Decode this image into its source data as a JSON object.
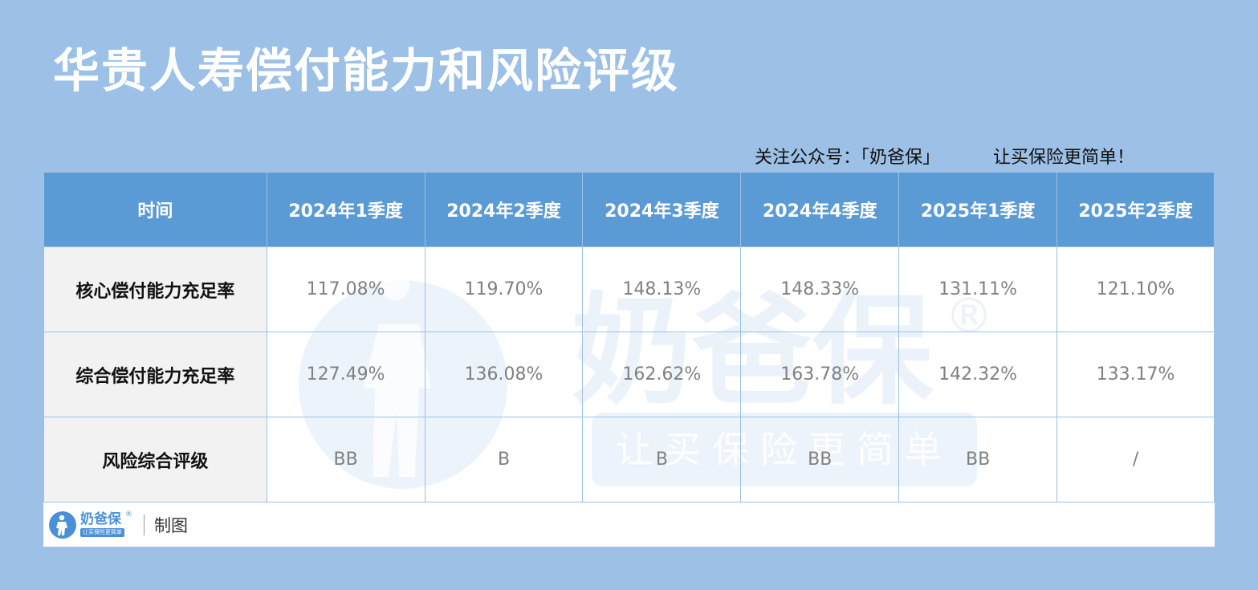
{
  "title": "华贵人寿偿付能力和风险评级",
  "slogan": {
    "follow": "关注公众号：「奶爸保」",
    "motto": "让买保险更简单！"
  },
  "table": {
    "header_label": "时间",
    "periods": [
      "2024年1季度",
      "2024年2季度",
      "2024年3季度",
      "2024年4季度",
      "2025年1季度",
      "2025年2季度"
    ],
    "rows": [
      {
        "label": "核心偿付能力充足率",
        "values": [
          "117.08%",
          "119.70%",
          "148.13%",
          "148.33%",
          "131.11%",
          "121.10%"
        ]
      },
      {
        "label": "综合偿付能力充足率",
        "values": [
          "127.49%",
          "136.08%",
          "162.62%",
          "163.78%",
          "142.32%",
          "133.17%"
        ]
      },
      {
        "label": "风险综合评级",
        "values": [
          "BB",
          "B",
          "B",
          "BB",
          "BB",
          "/"
        ]
      }
    ]
  },
  "watermark": {
    "brand": "奶爸保",
    "reg": "®",
    "tagline": "让买保险更简单"
  },
  "footer": {
    "logo_name": "奶爸保",
    "logo_reg": "®",
    "logo_tagline": "让买保险更简单",
    "caption": "制图"
  },
  "colors": {
    "background": "#9cc0e6",
    "header": "#5b9bd5",
    "label_cell": "#f2f2f2",
    "brand": "#4a90d9"
  }
}
